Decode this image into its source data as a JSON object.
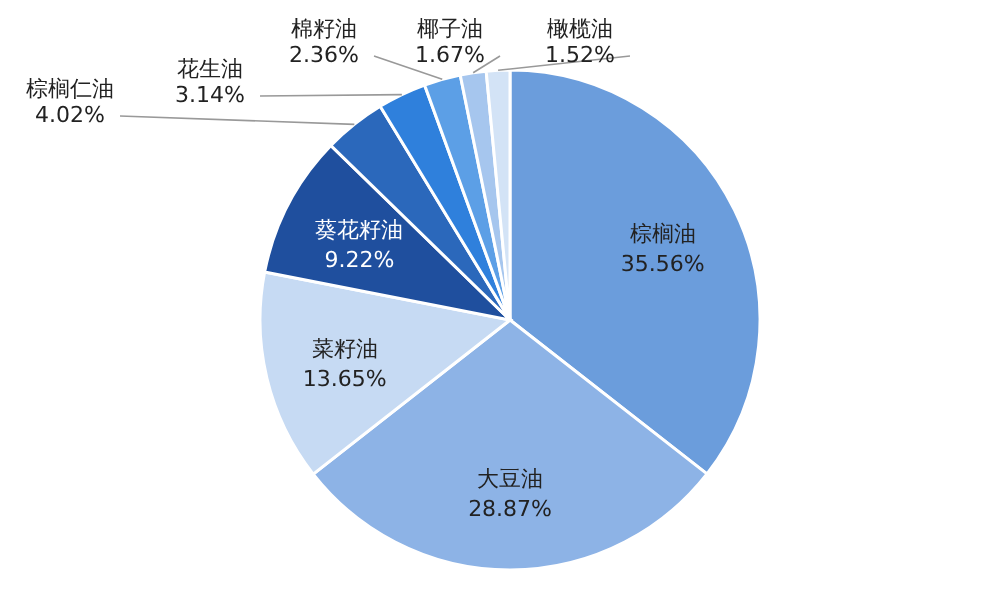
{
  "chart_data": {
    "type": "pie",
    "categories": [
      "棕榈油",
      "大豆油",
      "菜籽油",
      "葵花籽油",
      "棕榈仁油",
      "花生油",
      "棉籽油",
      "椰子油",
      "橄榄油"
    ],
    "values": [
      35.56,
      28.87,
      13.65,
      9.22,
      4.02,
      3.14,
      2.36,
      1.67,
      1.52
    ],
    "colors": [
      "#6b9ddc",
      "#8db3e6",
      "#c6daf3",
      "#1f4f9e",
      "#2b68bb",
      "#2f80dc",
      "#5c9fe6",
      "#a6c6ee",
      "#d3e3f6"
    ],
    "value_labels": [
      "35.56%",
      "28.87%",
      "13.65%",
      "9.22%",
      "4.02%",
      "3.14%",
      "2.36%",
      "1.67%",
      "1.52%"
    ]
  }
}
